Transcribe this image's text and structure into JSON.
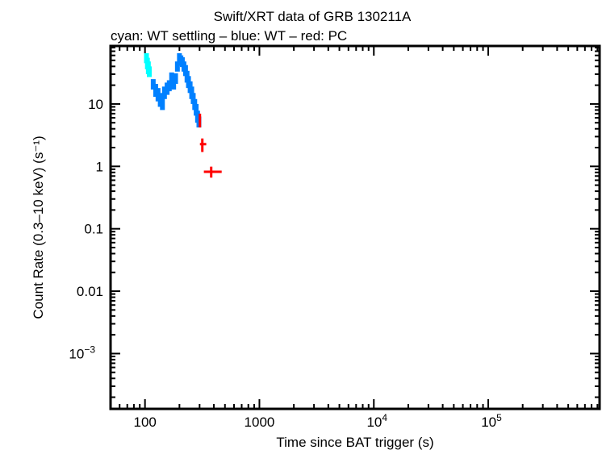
{
  "chart_data": {
    "type": "scatter",
    "title": "Swift/XRT data of GRB 130211A",
    "subtitle": "cyan: WT settling – blue: WT – red: PC",
    "xlabel": "Time since BAT trigger (s)",
    "ylabel": "Count Rate (0.3–10 keV) (s⁻¹)",
    "xscale": "log",
    "yscale": "log",
    "xlim": [
      50,
      940000
    ],
    "ylim": [
      0.00013,
      85
    ],
    "grid": false,
    "x_ticks": [
      {
        "value": 100,
        "label": "100"
      },
      {
        "value": 1000,
        "label": "1000"
      },
      {
        "value": 10000,
        "label": "10",
        "exp": "4"
      },
      {
        "value": 100000,
        "label": "10",
        "exp": "5"
      }
    ],
    "y_ticks": [
      {
        "value": 10,
        "label": "10"
      },
      {
        "value": 1,
        "label": "1"
      },
      {
        "value": 0.1,
        "label": "0.1"
      },
      {
        "value": 0.01,
        "label": "0.01"
      },
      {
        "value": 0.001,
        "label": "10",
        "exp": "−3"
      }
    ],
    "series": [
      {
        "mode": "WT settling",
        "color": "#00ffff",
        "points": [
          {
            "t": 103,
            "rate": 55,
            "lo": 45,
            "hi": 65
          },
          {
            "t": 105,
            "rate": 45,
            "lo": 36,
            "hi": 55
          },
          {
            "t": 107,
            "rate": 38,
            "lo": 30,
            "hi": 48
          },
          {
            "t": 109,
            "rate": 33,
            "lo": 27,
            "hi": 40
          }
        ]
      },
      {
        "mode": "WT",
        "color": "#0080ff",
        "points": [
          {
            "t": 118,
            "rate": 21,
            "lo": 17,
            "hi": 25
          },
          {
            "t": 124,
            "rate": 17,
            "lo": 13,
            "hi": 21
          },
          {
            "t": 130,
            "rate": 15,
            "lo": 11,
            "hi": 18
          },
          {
            "t": 136,
            "rate": 12,
            "lo": 9,
            "hi": 15
          },
          {
            "t": 142,
            "rate": 11,
            "lo": 8,
            "hi": 14
          },
          {
            "t": 148,
            "rate": 16,
            "lo": 12,
            "hi": 19
          },
          {
            "t": 156,
            "rate": 18,
            "lo": 14,
            "hi": 22
          },
          {
            "t": 163,
            "rate": 20,
            "lo": 16,
            "hi": 24
          },
          {
            "t": 171,
            "rate": 26,
            "lo": 20,
            "hi": 32
          },
          {
            "t": 178,
            "rate": 22,
            "lo": 17,
            "hi": 27
          },
          {
            "t": 185,
            "rate": 26,
            "lo": 21,
            "hi": 31
          },
          {
            "t": 192,
            "rate": 40,
            "lo": 33,
            "hi": 48
          },
          {
            "t": 200,
            "rate": 55,
            "lo": 45,
            "hi": 65
          },
          {
            "t": 206,
            "rate": 50,
            "lo": 41,
            "hi": 60
          },
          {
            "t": 212,
            "rate": 47,
            "lo": 39,
            "hi": 56
          },
          {
            "t": 219,
            "rate": 40,
            "lo": 33,
            "hi": 48
          },
          {
            "t": 226,
            "rate": 35,
            "lo": 28,
            "hi": 42
          },
          {
            "t": 233,
            "rate": 28,
            "lo": 22,
            "hi": 34
          },
          {
            "t": 240,
            "rate": 23,
            "lo": 18,
            "hi": 28
          },
          {
            "t": 248,
            "rate": 19,
            "lo": 15,
            "hi": 23
          },
          {
            "t": 256,
            "rate": 16,
            "lo": 12,
            "hi": 19
          },
          {
            "t": 264,
            "rate": 12.5,
            "lo": 10,
            "hi": 15
          },
          {
            "t": 272,
            "rate": 10,
            "lo": 8,
            "hi": 12
          },
          {
            "t": 280,
            "rate": 8,
            "lo": 6.5,
            "hi": 10
          },
          {
            "t": 288,
            "rate": 6.3,
            "lo": 5,
            "hi": 7.8
          },
          {
            "t": 296,
            "rate": 5.2,
            "lo": 4.2,
            "hi": 6.3
          }
        ]
      },
      {
        "mode": "PC",
        "color": "#ff0000",
        "points": [
          {
            "t": 302,
            "rate": 5.5,
            "lo": 4.2,
            "hi": 7.0,
            "tlo": 297,
            "thi": 307
          },
          {
            "t": 317,
            "rate": 2.27,
            "lo": 1.7,
            "hi": 2.8,
            "tlo": 302,
            "thi": 343
          },
          {
            "t": 379,
            "rate": 0.82,
            "lo": 0.66,
            "hi": 0.99,
            "tlo": 327,
            "thi": 468
          }
        ]
      }
    ]
  }
}
